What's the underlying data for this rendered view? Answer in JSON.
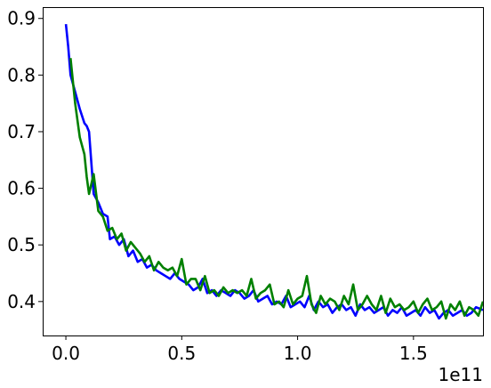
{
  "chart_data": {
    "type": "line",
    "title": "",
    "xlabel": "",
    "ylabel": "",
    "x_offset_label": "1e11",
    "xlim": [
      -0.1,
      1.8
    ],
    "ylim": [
      0.34,
      0.92
    ],
    "x_ticks": [
      0.0,
      0.5,
      1.0,
      1.5
    ],
    "x_tick_labels": [
      "0.0",
      "0.5",
      "1.0",
      "1.5"
    ],
    "y_ticks": [
      0.4,
      0.5,
      0.6,
      0.7,
      0.8,
      0.9
    ],
    "y_tick_labels": [
      "0.4",
      "0.5",
      "0.6",
      "0.7",
      "0.8",
      "0.9"
    ],
    "grid": false,
    "legend": "none",
    "series": [
      {
        "color": "#0000ff",
        "x": [
          0.0,
          0.01,
          0.02,
          0.04,
          0.06,
          0.08,
          0.09,
          0.1,
          0.12,
          0.14,
          0.16,
          0.18,
          0.19,
          0.21,
          0.23,
          0.25,
          0.27,
          0.29,
          0.31,
          0.33,
          0.35,
          0.37,
          0.39,
          0.41,
          0.43,
          0.45,
          0.47,
          0.49,
          0.51,
          0.53,
          0.55,
          0.57,
          0.59,
          0.61,
          0.63,
          0.65,
          0.67,
          0.69,
          0.71,
          0.73,
          0.75,
          0.77,
          0.79,
          0.81,
          0.83,
          0.85,
          0.87,
          0.89,
          0.91,
          0.93,
          0.95,
          0.97,
          0.99,
          1.01,
          1.03,
          1.05,
          1.07,
          1.09,
          1.11,
          1.13,
          1.15,
          1.17,
          1.19,
          1.21,
          1.23,
          1.25,
          1.27,
          1.29,
          1.31,
          1.33,
          1.35,
          1.37,
          1.39,
          1.41,
          1.43,
          1.45,
          1.47,
          1.49,
          1.51,
          1.53,
          1.55,
          1.57,
          1.59,
          1.61,
          1.63,
          1.65,
          1.67,
          1.69,
          1.71,
          1.73,
          1.75,
          1.77,
          1.8
        ],
        "y": [
          0.89,
          0.85,
          0.8,
          0.77,
          0.74,
          0.715,
          0.71,
          0.7,
          0.59,
          0.575,
          0.555,
          0.55,
          0.51,
          0.515,
          0.5,
          0.51,
          0.48,
          0.49,
          0.47,
          0.475,
          0.46,
          0.465,
          0.455,
          0.45,
          0.445,
          0.44,
          0.45,
          0.44,
          0.435,
          0.43,
          0.42,
          0.425,
          0.44,
          0.415,
          0.42,
          0.41,
          0.42,
          0.415,
          0.41,
          0.42,
          0.415,
          0.405,
          0.41,
          0.42,
          0.4,
          0.405,
          0.41,
          0.395,
          0.4,
          0.395,
          0.41,
          0.39,
          0.395,
          0.4,
          0.39,
          0.41,
          0.385,
          0.4,
          0.39,
          0.395,
          0.38,
          0.39,
          0.395,
          0.385,
          0.39,
          0.375,
          0.395,
          0.385,
          0.39,
          0.38,
          0.385,
          0.39,
          0.375,
          0.385,
          0.38,
          0.39,
          0.375,
          0.38,
          0.385,
          0.375,
          0.39,
          0.38,
          0.385,
          0.37,
          0.38,
          0.385,
          0.375,
          0.38,
          0.385,
          0.375,
          0.38,
          0.39,
          0.385
        ]
      },
      {
        "color": "#008000",
        "x": [
          0.02,
          0.03,
          0.04,
          0.06,
          0.08,
          0.09,
          0.1,
          0.12,
          0.14,
          0.16,
          0.18,
          0.2,
          0.22,
          0.24,
          0.26,
          0.28,
          0.3,
          0.32,
          0.34,
          0.36,
          0.38,
          0.4,
          0.42,
          0.44,
          0.46,
          0.48,
          0.5,
          0.52,
          0.54,
          0.56,
          0.58,
          0.6,
          0.62,
          0.64,
          0.66,
          0.68,
          0.7,
          0.72,
          0.74,
          0.76,
          0.78,
          0.8,
          0.82,
          0.84,
          0.86,
          0.88,
          0.9,
          0.92,
          0.94,
          0.96,
          0.98,
          1.0,
          1.02,
          1.04,
          1.06,
          1.08,
          1.1,
          1.12,
          1.14,
          1.16,
          1.18,
          1.2,
          1.22,
          1.24,
          1.26,
          1.28,
          1.3,
          1.32,
          1.34,
          1.36,
          1.38,
          1.4,
          1.42,
          1.44,
          1.46,
          1.48,
          1.5,
          1.52,
          1.54,
          1.56,
          1.58,
          1.6,
          1.62,
          1.64,
          1.66,
          1.68,
          1.7,
          1.72,
          1.74,
          1.76,
          1.78,
          1.8
        ],
        "y": [
          0.83,
          0.79,
          0.75,
          0.69,
          0.66,
          0.62,
          0.59,
          0.625,
          0.56,
          0.55,
          0.525,
          0.53,
          0.51,
          0.52,
          0.49,
          0.505,
          0.495,
          0.485,
          0.47,
          0.48,
          0.455,
          0.47,
          0.46,
          0.455,
          0.46,
          0.445,
          0.475,
          0.43,
          0.44,
          0.44,
          0.42,
          0.445,
          0.415,
          0.42,
          0.41,
          0.425,
          0.415,
          0.42,
          0.415,
          0.42,
          0.41,
          0.44,
          0.405,
          0.415,
          0.42,
          0.43,
          0.395,
          0.4,
          0.39,
          0.42,
          0.395,
          0.405,
          0.41,
          0.445,
          0.395,
          0.38,
          0.41,
          0.395,
          0.405,
          0.4,
          0.385,
          0.41,
          0.395,
          0.43,
          0.385,
          0.395,
          0.41,
          0.395,
          0.385,
          0.41,
          0.38,
          0.405,
          0.39,
          0.395,
          0.385,
          0.39,
          0.4,
          0.38,
          0.395,
          0.405,
          0.385,
          0.39,
          0.4,
          0.37,
          0.395,
          0.385,
          0.4,
          0.375,
          0.39,
          0.385,
          0.375,
          0.4
        ]
      }
    ]
  }
}
